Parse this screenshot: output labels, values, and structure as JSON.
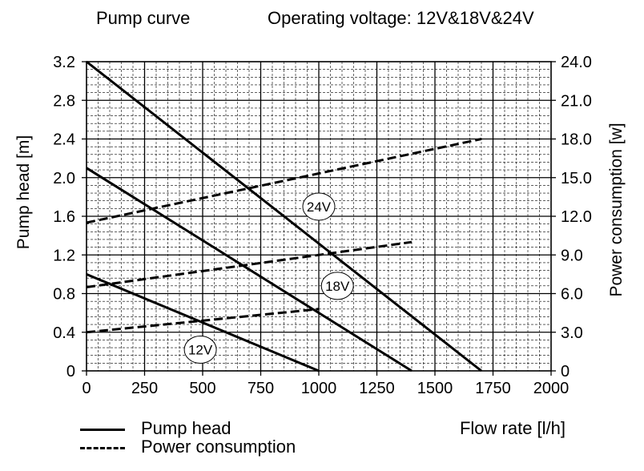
{
  "header": {
    "title": "Pump curve",
    "subtitle": "Operating voltage: 12V&18V&24V"
  },
  "legend": {
    "solid_label": "Pump head",
    "dashed_label": "Power consumption"
  },
  "colors": {
    "line": "#000000",
    "background": "#ffffff"
  },
  "chart_data": {
    "type": "line",
    "title": "Pump curve",
    "subtitle": "Operating voltage: 12V&18V&24V",
    "xlabel": "Flow rate [l/h]",
    "ylabel": "Pump head [m]",
    "y2label": "Power consumption [w]",
    "xlim": [
      0,
      2000
    ],
    "ylim": [
      0,
      3.2
    ],
    "y2lim": [
      0,
      24
    ],
    "grid": true,
    "xticks": [
      "0",
      "250",
      "500",
      "750",
      "1000",
      "1250",
      "1500",
      "1750",
      "2000"
    ],
    "yticks": [
      "0",
      "0.4",
      "0.8",
      "1.2",
      "1.6",
      "2.0",
      "2.4",
      "2.8",
      "3.2"
    ],
    "y2ticks": [
      "0",
      "3.0",
      "6.0",
      "9.0",
      "12.0",
      "15.0",
      "18.0",
      "21.0",
      "24.0"
    ],
    "series": [
      {
        "voltage": "24V",
        "kind": "Pump head",
        "axis": "left",
        "style": "solid",
        "x": [
          0,
          1700
        ],
        "y": [
          3.2,
          0
        ]
      },
      {
        "voltage": "18V",
        "kind": "Pump head",
        "axis": "left",
        "style": "solid",
        "x": [
          0,
          1400
        ],
        "y": [
          2.1,
          0
        ]
      },
      {
        "voltage": "12V",
        "kind": "Pump head",
        "axis": "left",
        "style": "solid",
        "x": [
          0,
          1000
        ],
        "y": [
          1.0,
          0
        ]
      },
      {
        "voltage": "24V",
        "kind": "Power consumption",
        "axis": "right",
        "style": "dashed",
        "x": [
          0,
          1700
        ],
        "y": [
          11.5,
          18.0
        ]
      },
      {
        "voltage": "18V",
        "kind": "Power consumption",
        "axis": "right",
        "style": "dashed",
        "x": [
          0,
          1400
        ],
        "y": [
          6.5,
          10.0
        ]
      },
      {
        "voltage": "12V",
        "kind": "Power consumption",
        "axis": "right",
        "style": "dashed",
        "x": [
          0,
          1000
        ],
        "y": [
          3.0,
          4.8
        ]
      }
    ],
    "annotations": [
      {
        "text": "24V",
        "x": 1000,
        "y": 1.7
      },
      {
        "text": "18V",
        "x": 1080,
        "y": 0.88
      },
      {
        "text": "12V",
        "x": 490,
        "y": 0.22
      }
    ]
  }
}
